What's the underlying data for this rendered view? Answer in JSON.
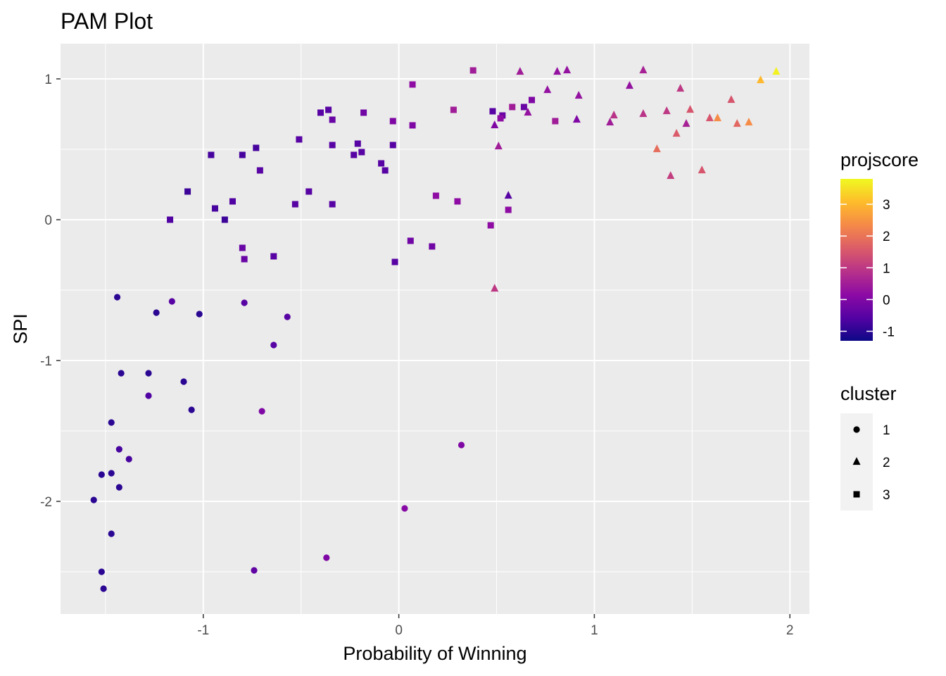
{
  "chart_data": {
    "type": "scatter",
    "title": "PAM Plot",
    "xlabel": "Probability of Winning",
    "ylabel": "SPI",
    "xlim": [
      -1.73,
      2.1
    ],
    "ylim": [
      -2.8,
      1.25
    ],
    "x_ticks": [
      {
        "value": -1,
        "label": "-1"
      },
      {
        "value": 0,
        "label": "0"
      },
      {
        "value": 1,
        "label": "1"
      },
      {
        "value": 2,
        "label": "2"
      }
    ],
    "y_ticks": [
      {
        "value": -2,
        "label": "-2"
      },
      {
        "value": -1,
        "label": "-1"
      },
      {
        "value": 0,
        "label": "0"
      },
      {
        "value": 1,
        "label": "1"
      }
    ],
    "grid": true,
    "panel_background": "#ebebeb",
    "legend_placement": "right",
    "color_legend": {
      "title": "projscore",
      "range": [
        -1.3,
        3.8
      ],
      "colormap": [
        "#0d0887",
        "#5302a3",
        "#8b0aa5",
        "#b83289",
        "#db5c68",
        "#f48849",
        "#febd2a",
        "#f0f921"
      ],
      "ticks": [
        {
          "value": 3,
          "label": "3"
        },
        {
          "value": 2,
          "label": "2"
        },
        {
          "value": 1,
          "label": "1"
        },
        {
          "value": 0,
          "label": "0"
        },
        {
          "value": -1,
          "label": "-1"
        }
      ]
    },
    "shape_legend": {
      "title": "cluster",
      "items": [
        {
          "label": "1",
          "shape": "circle"
        },
        {
          "label": "2",
          "shape": "triangle"
        },
        {
          "label": "3",
          "shape": "square"
        }
      ]
    },
    "series": [
      {
        "name": "1",
        "shape": "circle",
        "points": [
          [
            -1.44,
            -0.55,
            -1.0
          ],
          [
            -1.16,
            -0.58,
            -0.5
          ],
          [
            -1.24,
            -0.66,
            -1.0
          ],
          [
            -1.02,
            -0.67,
            -1.0
          ],
          [
            -0.79,
            -0.59,
            -0.5
          ],
          [
            -0.57,
            -0.69,
            -0.5
          ],
          [
            -0.64,
            -0.89,
            -0.5
          ],
          [
            -1.42,
            -1.09,
            -1.0
          ],
          [
            -1.28,
            -1.09,
            -1.0
          ],
          [
            -1.1,
            -1.15,
            -1.0
          ],
          [
            -1.28,
            -1.25,
            -0.6
          ],
          [
            -1.06,
            -1.35,
            -1.0
          ],
          [
            -0.7,
            -1.36,
            0.0
          ],
          [
            -1.47,
            -1.44,
            -1.0
          ],
          [
            -1.43,
            -1.63,
            -0.7
          ],
          [
            -1.38,
            -1.7,
            -0.7
          ],
          [
            -1.52,
            -1.81,
            -1.0
          ],
          [
            -1.47,
            -1.8,
            -1.0
          ],
          [
            -1.43,
            -1.9,
            -1.0
          ],
          [
            -1.56,
            -1.99,
            -1.0
          ],
          [
            -1.47,
            -2.23,
            -1.0
          ],
          [
            -1.52,
            -2.5,
            -1.0
          ],
          [
            -1.51,
            -2.62,
            -1.0
          ],
          [
            -0.74,
            -2.49,
            -0.4
          ],
          [
            -0.37,
            -2.4,
            0.0
          ],
          [
            0.03,
            -2.05,
            0.1
          ],
          [
            0.32,
            -1.6,
            0.0
          ]
        ]
      },
      {
        "name": "2",
        "shape": "triangle",
        "points": [
          [
            0.62,
            1.05,
            0.5
          ],
          [
            0.81,
            1.05,
            0.3
          ],
          [
            0.86,
            1.06,
            0.3
          ],
          [
            1.25,
            1.06,
            0.6
          ],
          [
            0.76,
            0.92,
            0.3
          ],
          [
            0.92,
            0.88,
            0.3
          ],
          [
            1.18,
            0.95,
            0.3
          ],
          [
            1.44,
            0.93,
            1.0
          ],
          [
            1.7,
            0.85,
            1.5
          ],
          [
            0.49,
            0.67,
            0.0
          ],
          [
            0.66,
            0.76,
            0.3
          ],
          [
            0.91,
            0.71,
            0.0
          ],
          [
            1.08,
            0.69,
            0.5
          ],
          [
            1.1,
            0.74,
            0.9
          ],
          [
            1.25,
            0.75,
            0.9
          ],
          [
            1.37,
            0.77,
            1.0
          ],
          [
            1.47,
            0.68,
            0.6
          ],
          [
            1.49,
            0.78,
            1.5
          ],
          [
            1.59,
            0.72,
            1.5
          ],
          [
            1.63,
            0.72,
            2.4
          ],
          [
            1.73,
            0.68,
            1.8
          ],
          [
            1.79,
            0.69,
            2.4
          ],
          [
            1.85,
            0.99,
            3.0
          ],
          [
            1.93,
            1.05,
            3.7
          ],
          [
            0.51,
            0.52,
            0.5
          ],
          [
            1.32,
            0.5,
            1.9
          ],
          [
            1.42,
            0.61,
            1.6
          ],
          [
            1.39,
            0.31,
            1.1
          ],
          [
            1.55,
            0.35,
            1.5
          ],
          [
            0.56,
            0.17,
            -0.5
          ],
          [
            0.49,
            -0.49,
            1.0
          ]
        ]
      },
      {
        "name": "3",
        "shape": "square",
        "points": [
          [
            0.38,
            1.06,
            0.5
          ],
          [
            0.07,
            0.96,
            0.2
          ],
          [
            -0.4,
            0.76,
            -0.5
          ],
          [
            -0.36,
            0.78,
            -0.5
          ],
          [
            -0.34,
            0.71,
            -0.3
          ],
          [
            -0.18,
            0.76,
            -0.2
          ],
          [
            -0.03,
            0.7,
            0.0
          ],
          [
            0.07,
            0.67,
            0.0
          ],
          [
            0.28,
            0.78,
            0.5
          ],
          [
            0.48,
            0.77,
            -0.5
          ],
          [
            0.53,
            0.74,
            -0.3
          ],
          [
            0.58,
            0.8,
            0.5
          ],
          [
            0.52,
            0.72,
            0.2
          ],
          [
            0.64,
            0.8,
            -0.3
          ],
          [
            0.68,
            0.85,
            0.0
          ],
          [
            0.8,
            0.7,
            0.5
          ],
          [
            -0.96,
            0.46,
            -0.7
          ],
          [
            -0.8,
            0.46,
            -0.7
          ],
          [
            -0.73,
            0.51,
            -0.7
          ],
          [
            -0.71,
            0.35,
            -0.5
          ],
          [
            -0.51,
            0.57,
            -0.5
          ],
          [
            -0.34,
            0.53,
            -0.5
          ],
          [
            -0.23,
            0.46,
            -0.5
          ],
          [
            -0.21,
            0.54,
            -0.5
          ],
          [
            -0.19,
            0.48,
            -0.5
          ],
          [
            -0.03,
            0.53,
            -0.5
          ],
          [
            -0.09,
            0.4,
            -0.5
          ],
          [
            -0.07,
            0.35,
            -0.5
          ],
          [
            -1.08,
            0.2,
            -0.8
          ],
          [
            -0.46,
            0.2,
            -0.5
          ],
          [
            -0.94,
            0.08,
            -0.7
          ],
          [
            -0.85,
            0.13,
            -0.6
          ],
          [
            -0.89,
            0.0,
            -0.8
          ],
          [
            -1.17,
            0.0,
            -0.6
          ],
          [
            -0.53,
            0.11,
            -0.5
          ],
          [
            -0.34,
            0.11,
            -0.5
          ],
          [
            0.19,
            0.17,
            0.2
          ],
          [
            0.3,
            0.13,
            0.2
          ],
          [
            0.47,
            -0.04,
            0.2
          ],
          [
            0.56,
            0.07,
            0.2
          ],
          [
            -0.8,
            -0.2,
            -0.3
          ],
          [
            -0.79,
            -0.28,
            -0.3
          ],
          [
            -0.64,
            -0.26,
            -0.5
          ],
          [
            0.06,
            -0.15,
            -0.2
          ],
          [
            0.17,
            -0.19,
            -0.2
          ],
          [
            -0.02,
            -0.3,
            -0.5
          ]
        ]
      }
    ]
  }
}
